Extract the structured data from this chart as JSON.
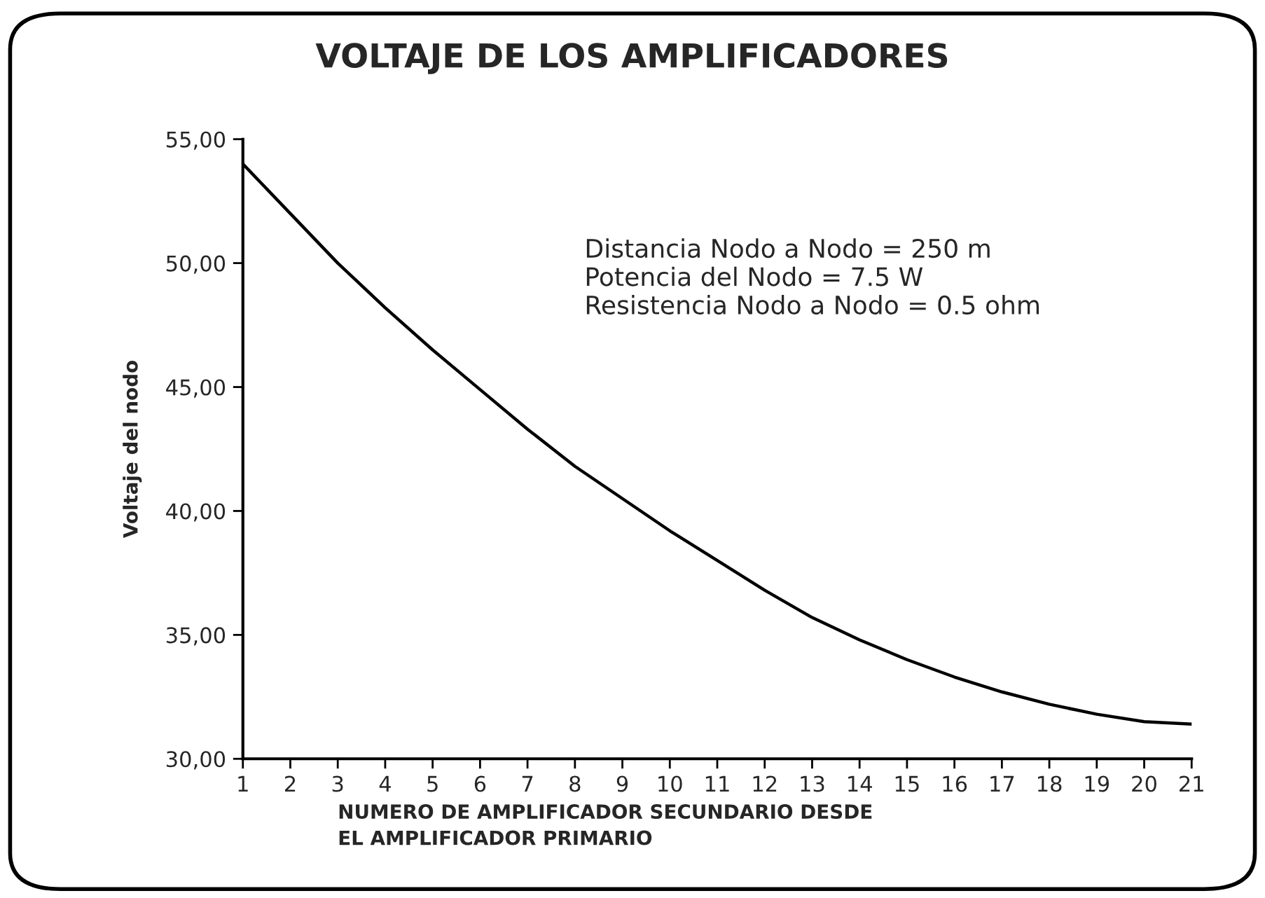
{
  "chart_data": {
    "type": "line",
    "title": "VOLTAJE DE LOS AMPLIFICADORES",
    "xlabel": "NUMERO DE AMPLIFICADOR SECUNDARIO DESDE\nEL AMPLIFICADOR PRIMARIO",
    "ylabel": "Voltaje del nodo",
    "x": [
      1,
      2,
      3,
      4,
      5,
      6,
      7,
      8,
      9,
      10,
      11,
      12,
      13,
      14,
      15,
      16,
      17,
      18,
      19,
      20,
      21
    ],
    "series": [
      {
        "color": "#000000",
        "values": [
          54.0,
          52.0,
          50.0,
          48.2,
          46.5,
          44.9,
          43.3,
          41.8,
          40.5,
          39.2,
          38.0,
          36.8,
          35.7,
          34.8,
          34.0,
          33.3,
          32.7,
          32.2,
          31.8,
          31.5,
          31.4
        ]
      }
    ],
    "xlim": [
      1,
      21
    ],
    "xticks": [
      1,
      2,
      3,
      4,
      5,
      6,
      7,
      8,
      9,
      10,
      11,
      12,
      13,
      14,
      15,
      16,
      17,
      18,
      19,
      20,
      21
    ],
    "ylim": [
      30,
      55
    ],
    "yticks": [
      {
        "value": 30,
        "label": "30,00"
      },
      {
        "value": 35,
        "label": "35,00"
      },
      {
        "value": 40,
        "label": "40,00"
      },
      {
        "value": 45,
        "label": "45,00"
      },
      {
        "value": 50,
        "label": "50,00"
      },
      {
        "value": 55,
        "label": "55,00"
      }
    ],
    "annotations": [
      "Distancia Nodo a Nodo = 250 m\nPotencia del Nodo = 7.5 W\nResistencia Nodo a Nodo = 0.5 ohm"
    ],
    "grid": false,
    "legend": false,
    "marker": "none",
    "line_style": "solid"
  }
}
